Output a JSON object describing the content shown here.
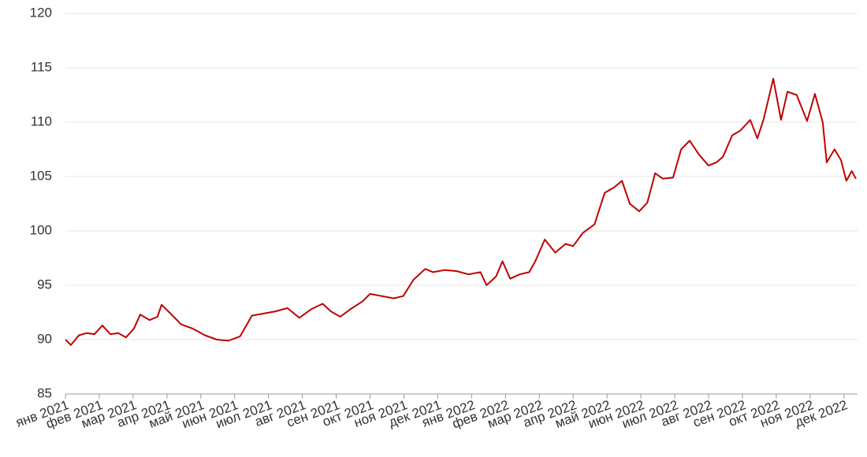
{
  "chart_data": {
    "type": "line",
    "x": [
      0,
      0.16,
      0.4,
      0.63,
      0.86,
      1.09,
      1.33,
      1.56,
      1.79,
      2.02,
      2.21,
      2.49,
      2.72,
      2.84,
      3.07,
      3.42,
      3.77,
      4.12,
      4.47,
      4.81,
      5.16,
      5.51,
      5.86,
      6.21,
      6.56,
      6.91,
      7.26,
      7.6,
      7.84,
      8.12,
      8.42,
      8.77,
      9.0,
      9.35,
      9.7,
      9.98,
      10.28,
      10.63,
      10.86,
      11.21,
      11.56,
      11.91,
      12.26,
      12.44,
      12.72,
      12.91,
      13.14,
      13.42,
      13.7,
      13.88,
      14.16,
      14.47,
      14.77,
      15.0,
      15.28,
      15.63,
      15.93,
      16.21,
      16.44,
      16.67,
      16.95,
      17.19,
      17.42,
      17.65,
      17.95,
      18.19,
      18.44,
      18.72,
      19.0,
      19.23,
      19.42,
      19.7,
      19.93,
      20.23,
      20.44,
      20.63,
      20.91,
      21.14,
      21.33,
      21.6,
      21.91,
      22.14,
      22.37,
      22.49,
      22.72,
      22.91,
      23.07,
      23.23,
      23.35
    ],
    "series": [
      {
        "color": "#c00000",
        "values": [
          90.0,
          89.5,
          90.4,
          90.6,
          90.5,
          91.3,
          90.5,
          90.6,
          90.2,
          91.0,
          92.3,
          91.8,
          92.1,
          93.2,
          92.5,
          91.4,
          91.0,
          90.4,
          90.0,
          89.9,
          90.3,
          92.2,
          92.4,
          92.6,
          92.9,
          92.0,
          92.8,
          93.3,
          92.6,
          92.1,
          92.8,
          93.5,
          94.2,
          94.0,
          93.8,
          94.0,
          95.5,
          96.5,
          96.2,
          96.4,
          96.3,
          96.0,
          96.2,
          95.0,
          95.8,
          97.2,
          95.6,
          96.0,
          96.2,
          97.2,
          99.2,
          98.0,
          98.8,
          98.6,
          99.8,
          100.6,
          103.5,
          104.0,
          104.6,
          102.5,
          101.8,
          102.6,
          105.3,
          104.8,
          104.9,
          107.5,
          108.3,
          107.0,
          106.0,
          106.3,
          106.8,
          108.8,
          109.2,
          110.2,
          108.5,
          110.3,
          114.0,
          110.2,
          112.8,
          112.5,
          110.1,
          112.6,
          110.0,
          106.3,
          107.5,
          106.5,
          104.6,
          105.5,
          104.8
        ]
      }
    ],
    "xlim": [
      0,
      23.4
    ],
    "xticks": [
      {
        "value": 0,
        "label": "янв 2021"
      },
      {
        "value": 1,
        "label": "фев 2021"
      },
      {
        "value": 2,
        "label": "мар 2021"
      },
      {
        "value": 3,
        "label": "апр 2021"
      },
      {
        "value": 4,
        "label": "май 2021"
      },
      {
        "value": 5,
        "label": "июн 2021"
      },
      {
        "value": 6,
        "label": "июл 2021"
      },
      {
        "value": 7,
        "label": "авг 2021"
      },
      {
        "value": 8,
        "label": "сен 2021"
      },
      {
        "value": 9,
        "label": "окт 2021"
      },
      {
        "value": 10,
        "label": "ноя 2021"
      },
      {
        "value": 11,
        "label": "дек 2021"
      },
      {
        "value": 12,
        "label": "янв 2022"
      },
      {
        "value": 13,
        "label": "фев 2022"
      },
      {
        "value": 14,
        "label": "мар 2022"
      },
      {
        "value": 15,
        "label": "апр 2022"
      },
      {
        "value": 16,
        "label": "май 2022"
      },
      {
        "value": 17,
        "label": "июн 2022"
      },
      {
        "value": 18,
        "label": "июл 2022"
      },
      {
        "value": 19,
        "label": "авг 2022"
      },
      {
        "value": 20,
        "label": "сен 2022"
      },
      {
        "value": 21,
        "label": "окт 2022"
      },
      {
        "value": 22,
        "label": "ноя 2022"
      },
      {
        "value": 23,
        "label": "дек 2022"
      }
    ],
    "ylim": [
      85,
      120
    ],
    "yticks": [
      85,
      90,
      95,
      100,
      105,
      110,
      115,
      120
    ],
    "grid": true
  }
}
